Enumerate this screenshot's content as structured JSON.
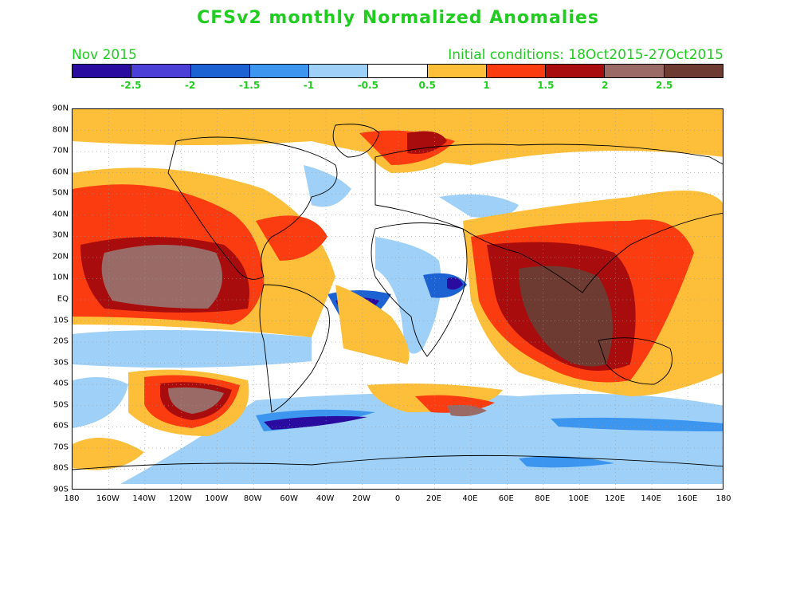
{
  "title": "CFSv2 monthly Normalized Anomalies",
  "subtitle_left": "Nov 2015",
  "subtitle_right": "Initial conditions: 18Oct2015-27Oct2015",
  "colorbar": {
    "colors": [
      "#2a0ba0",
      "#4b3fd8",
      "#1c62d3",
      "#3c96f0",
      "#9fd0f8",
      "#ffffff",
      "#fdbf3a",
      "#fb3b10",
      "#a80c0c",
      "#9a6b66",
      "#6e3b33"
    ],
    "labels": [
      "-2.5",
      "-2",
      "-1.5",
      "-1",
      "-0.5",
      "0.5",
      "1",
      "1.5",
      "2",
      "2.5"
    ]
  },
  "axes": {
    "lat_labels": [
      "90N",
      "80N",
      "70N",
      "60N",
      "50N",
      "40N",
      "30N",
      "20N",
      "10N",
      "EQ",
      "10S",
      "20S",
      "30S",
      "40S",
      "50S",
      "60S",
      "70S",
      "80S",
      "90S"
    ],
    "lon_labels": [
      "180",
      "160W",
      "140W",
      "120W",
      "100W",
      "80W",
      "60W",
      "40W",
      "20W",
      "0",
      "20E",
      "40E",
      "60E",
      "80E",
      "100E",
      "120E",
      "140E",
      "160E",
      "180"
    ]
  }
}
